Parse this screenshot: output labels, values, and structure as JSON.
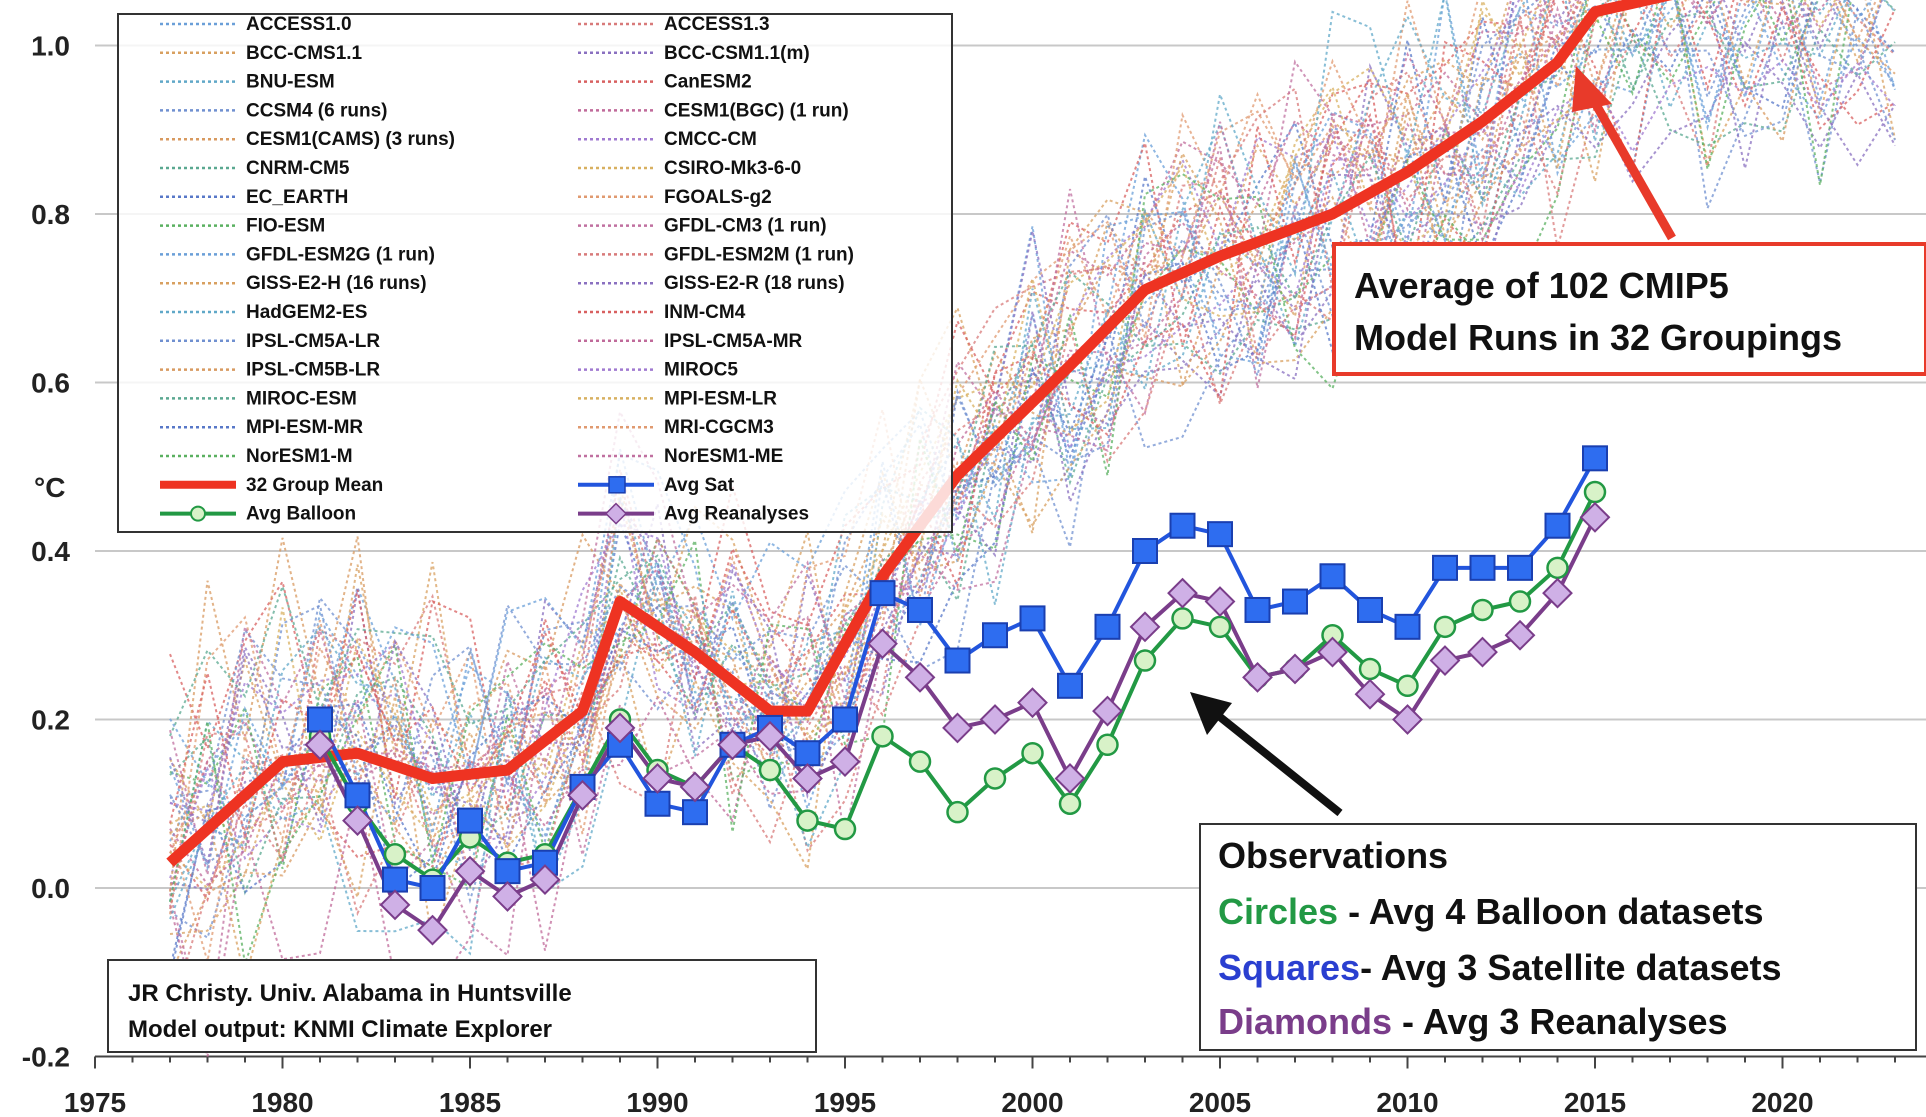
{
  "chart_data": {
    "type": "line",
    "ylabel": "°C",
    "xlim": [
      1975,
      2023
    ],
    "ylim": [
      -0.2,
      1.05
    ],
    "x_ticks": [
      "1975",
      "1980",
      "1985",
      "1990",
      "1995",
      "2000",
      "2005",
      "2010",
      "2015",
      "2020"
    ],
    "y_ticks": [
      "-0.2",
      "0.0",
      "0.2",
      "0.4",
      "0.6",
      "0.8",
      "1.0"
    ],
    "grid": true,
    "model_names": [
      "ACCESS1.0",
      "ACCESS1.3",
      "BCC-CMS1.1",
      "BCC-CSM1.1(m)",
      "BNU-ESM",
      "CanESM2",
      "CCSM4 (6 runs)",
      "CESM1(BGC) (1 run)",
      "CESM1(CAMS) (3 runs)",
      "CMCC-CM",
      "CNRM-CM5",
      "CSIRO-Mk3-6-0",
      "EC_EARTH",
      "FGOALS-g2",
      "FIO-ESM",
      "GFDL-CM3 (1 run)",
      "GFDL-ESM2G (1 run)",
      "GFDL-ESM2M (1 run)",
      "GISS-E2-H (16 runs)",
      "GISS-E2-R (18 runs)",
      "HadGEM2-ES",
      "INM-CM4",
      "IPSL-CM5A-LR",
      "IPSL-CM5A-MR",
      "IPSL-CM5B-LR",
      "MIROC5",
      "MIROC-ESM",
      "MPI-ESM-LR",
      "MPI-ESM-MR",
      "MRI-CGCM3",
      "NorESM1-M",
      "NorESM1-ME"
    ],
    "model_colors": [
      "#6a9fd8",
      "#d87a7a",
      "#d8a060",
      "#8a70c0",
      "#60a8c8",
      "#d86060",
      "#7090d0",
      "#c06a9a",
      "#d89a60",
      "#a07ad0",
      "#5aa890",
      "#d8b060",
      "#5878c8",
      "#e09a70",
      "#5ab060",
      "#c070a0"
    ],
    "legend_main": [
      {
        "label": "32 Group Mean",
        "color": "#ee3322"
      },
      {
        "label": "Avg Sat",
        "color": "#2255dd"
      },
      {
        "label": "Avg Balloon",
        "color": "#229944"
      },
      {
        "label": "Avg Reanalyses",
        "color": "#7a3d8a"
      }
    ],
    "series": [
      {
        "name": "32 Group Mean",
        "color": "#ee3322",
        "x": [
          1977,
          1980,
          1982,
          1984,
          1986,
          1988,
          1989,
          1991,
          1993,
          1994,
          1996,
          1998,
          2001,
          2003,
          2005,
          2008,
          2010,
          2012,
          2014,
          2015,
          2017,
          2022
        ],
        "y": [
          0.03,
          0.15,
          0.16,
          0.13,
          0.14,
          0.21,
          0.34,
          0.28,
          0.21,
          0.21,
          0.37,
          0.49,
          0.62,
          0.71,
          0.75,
          0.8,
          0.85,
          0.91,
          0.98,
          1.04,
          1.06,
          1.1
        ]
      },
      {
        "name": "Avg Sat",
        "color": "#2255dd",
        "x": [
          1981,
          1982,
          1983,
          1984,
          1985,
          1986,
          1987,
          1988,
          1989,
          1990,
          1991,
          1992,
          1993,
          1994,
          1995,
          1996,
          1997,
          1998,
          1999,
          2000,
          2001,
          2002,
          2003,
          2004,
          2005,
          2006,
          2007,
          2008,
          2009,
          2010,
          2011,
          2012,
          2013,
          2014,
          2015
        ],
        "y": [
          0.2,
          0.11,
          0.01,
          0.0,
          0.08,
          0.02,
          0.03,
          0.12,
          0.17,
          0.1,
          0.09,
          0.17,
          0.19,
          0.16,
          0.2,
          0.35,
          0.33,
          0.27,
          0.3,
          0.32,
          0.24,
          0.31,
          0.4,
          0.43,
          0.42,
          0.33,
          0.34,
          0.37,
          0.33,
          0.31,
          0.38,
          0.38,
          0.38,
          0.43,
          0.51
        ]
      },
      {
        "name": "Avg Balloon",
        "color": "#229944",
        "x": [
          1981,
          1982,
          1983,
          1984,
          1985,
          1986,
          1987,
          1988,
          1989,
          1990,
          1991,
          1992,
          1993,
          1994,
          1995,
          1996,
          1997,
          1998,
          1999,
          2000,
          2001,
          2002,
          2003,
          2004,
          2005,
          2006,
          2007,
          2008,
          2009,
          2010,
          2011,
          2012,
          2013,
          2014,
          2015
        ],
        "y": [
          0.18,
          0.1,
          0.04,
          0.01,
          0.06,
          0.03,
          0.04,
          0.12,
          0.2,
          0.14,
          0.12,
          0.17,
          0.14,
          0.08,
          0.07,
          0.18,
          0.15,
          0.09,
          0.13,
          0.16,
          0.1,
          0.17,
          0.27,
          0.32,
          0.31,
          0.25,
          0.26,
          0.3,
          0.26,
          0.24,
          0.31,
          0.33,
          0.34,
          0.38,
          0.47
        ]
      },
      {
        "name": "Avg Reanalyses",
        "color": "#7a3d8a",
        "x": [
          1981,
          1982,
          1983,
          1984,
          1985,
          1986,
          1987,
          1988,
          1989,
          1990,
          1991,
          1992,
          1993,
          1994,
          1995,
          1996,
          1997,
          1998,
          1999,
          2000,
          2001,
          2002,
          2003,
          2004,
          2005,
          2006,
          2007,
          2008,
          2009,
          2010,
          2011,
          2012,
          2013,
          2014,
          2015
        ],
        "y": [
          0.17,
          0.08,
          -0.02,
          -0.05,
          0.02,
          -0.01,
          0.01,
          0.11,
          0.19,
          0.13,
          0.12,
          0.17,
          0.18,
          0.13,
          0.15,
          0.29,
          0.25,
          0.19,
          0.2,
          0.22,
          0.13,
          0.21,
          0.31,
          0.35,
          0.34,
          0.25,
          0.26,
          0.28,
          0.23,
          0.2,
          0.27,
          0.28,
          0.3,
          0.35,
          0.44
        ]
      }
    ],
    "annotations": {
      "model_avg_lines": [
        "Average of 102 CMIP5",
        "Model Runs in 32 Groupings"
      ],
      "obs_title": "Observations",
      "obs_circles_word": "Circles",
      "obs_circles_rest": " - Avg 4 Balloon datasets",
      "obs_squares_word": "Squares",
      "obs_squares_rest": "- Avg 3 Satellite datasets",
      "obs_diamonds_word": "Diamonds",
      "obs_diamonds_rest": " - Avg 3 Reanalyses",
      "credit_line1": "JR Christy. Univ. Alabama in Huntsville",
      "credit_line2": "Model output: KNMI Climate Explorer"
    }
  }
}
